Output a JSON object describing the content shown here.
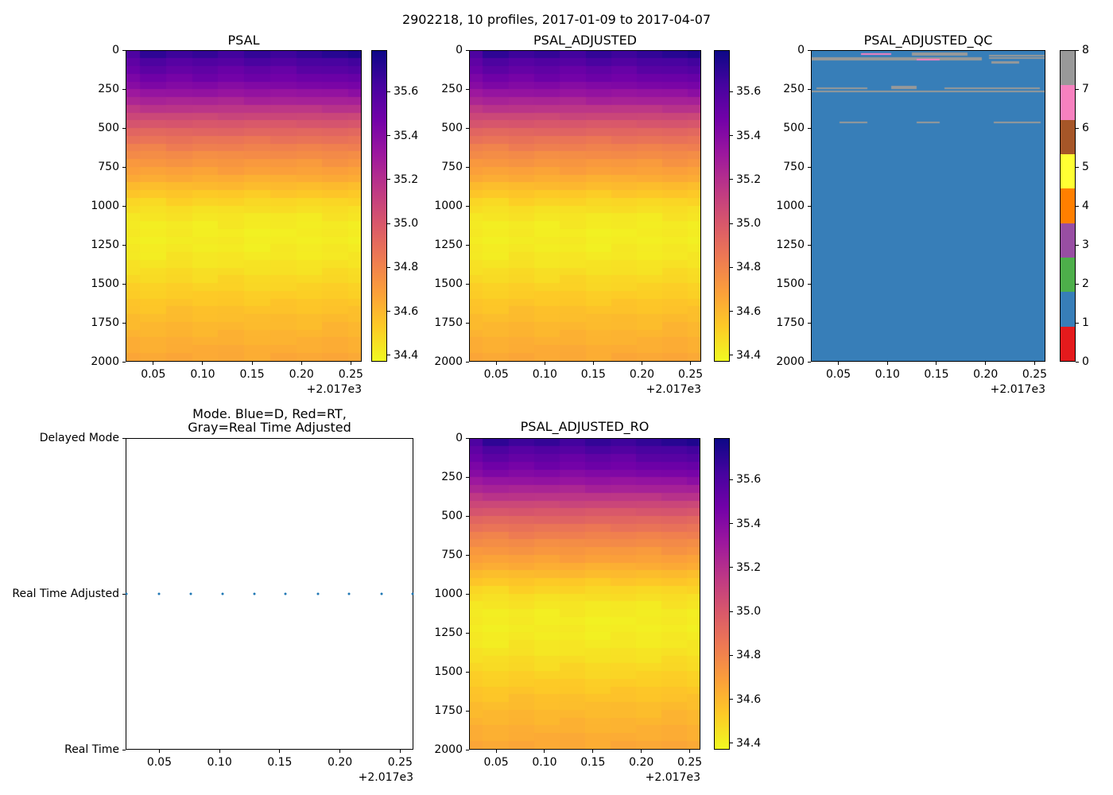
{
  "figure": {
    "title": "2902218, 10 profiles, 2017-01-09 to 2017-04-07"
  },
  "panels": {
    "psal": {
      "title": "PSAL"
    },
    "psal_adjusted": {
      "title": "PSAL_ADJUSTED"
    },
    "psal_adjusted_qc": {
      "title": "PSAL_ADJUSTED_QC"
    },
    "mode": {
      "title": "Mode. Blue=D, Red=RT,\nGray=Real Time Adjusted"
    },
    "psal_adjusted_ro": {
      "title": "PSAL_ADJUSTED_RO"
    }
  },
  "axis": {
    "xlim": [
      2017.022,
      2017.261
    ],
    "xticks": [
      {
        "value": 2017.05,
        "label": "0.05"
      },
      {
        "value": 2017.1,
        "label": "0.10"
      },
      {
        "value": 2017.15,
        "label": "0.15"
      },
      {
        "value": 2017.2,
        "label": "0.20"
      },
      {
        "value": 2017.25,
        "label": "0.25"
      }
    ],
    "x_offset_label": "+2.017e3",
    "depth_lim": [
      0,
      2000
    ],
    "depth_ticks": [
      {
        "value": 0,
        "label": "0"
      },
      {
        "value": 250,
        "label": "250"
      },
      {
        "value": 500,
        "label": "500"
      },
      {
        "value": 750,
        "label": "750"
      },
      {
        "value": 1000,
        "label": "1000"
      },
      {
        "value": 1250,
        "label": "1250"
      },
      {
        "value": 1500,
        "label": "1500"
      },
      {
        "value": 1750,
        "label": "1750"
      },
      {
        "value": 2000,
        "label": "2000"
      }
    ]
  },
  "salinity_colormap": {
    "name": "plasma_r",
    "vmin": 34.37,
    "vmax": 35.79,
    "cbar_ticks": [
      {
        "value": 35.6,
        "label": "35.6"
      },
      {
        "value": 35.4,
        "label": "35.4"
      },
      {
        "value": 35.2,
        "label": "35.2"
      },
      {
        "value": 35.0,
        "label": "35.0"
      },
      {
        "value": 34.8,
        "label": "34.8"
      },
      {
        "value": 34.6,
        "label": "34.6"
      },
      {
        "value": 34.4,
        "label": "34.4"
      }
    ]
  },
  "qc_colormap": {
    "colors_by_flag": {
      "0": "#e41a1c",
      "1": "#377eb8",
      "2": "#4daf4a",
      "3": "#984ea3",
      "4": "#ff7f00",
      "5": "#ffff33",
      "6": "#a65628",
      "7": "#f781bf",
      "8": "#999999"
    },
    "cbar_ticks": [
      {
        "value": 8,
        "label": "8"
      },
      {
        "value": 7,
        "label": "7"
      },
      {
        "value": 6,
        "label": "6"
      },
      {
        "value": 5,
        "label": "5"
      },
      {
        "value": 4,
        "label": "4"
      },
      {
        "value": 3,
        "label": "3"
      },
      {
        "value": 2,
        "label": "2"
      },
      {
        "value": 1,
        "label": "1"
      },
      {
        "value": 0,
        "label": "0"
      }
    ]
  },
  "chart_data": [
    {
      "type": "heatmap",
      "panels": [
        "psal",
        "psal_adjusted",
        "psal_adjusted_ro"
      ],
      "titles": [
        "PSAL",
        "PSAL_ADJUSTED",
        "PSAL_ADJUSTED_RO"
      ],
      "n_profiles": 10,
      "profile_times_decimal_year": [
        2017.022,
        2017.049,
        2017.076,
        2017.102,
        2017.129,
        2017.155,
        2017.182,
        2017.208,
        2017.235,
        2017.261
      ],
      "depth_profile": {
        "depths_m": [
          0,
          50,
          100,
          150,
          200,
          250,
          300,
          350,
          400,
          450,
          500,
          550,
          600,
          650,
          700,
          750,
          800,
          850,
          900,
          950,
          1000,
          1100,
          1200,
          1300,
          1400,
          1500,
          1600,
          1700,
          1800,
          1900,
          2000
        ],
        "salinity_psu": [
          35.7,
          35.62,
          35.55,
          35.5,
          35.45,
          35.38,
          35.3,
          35.21,
          35.12,
          35.04,
          34.97,
          34.9,
          34.84,
          34.79,
          34.74,
          34.7,
          34.66,
          34.61,
          34.56,
          34.51,
          34.47,
          34.42,
          34.41,
          34.42,
          34.45,
          34.49,
          34.53,
          34.57,
          34.6,
          34.63,
          34.66
        ]
      },
      "surface_delta_per_profile": [
        -0.05,
        0.03,
        -0.01,
        0.02,
        -0.02,
        0.03,
        0.0,
        0.04,
        0.05,
        0.08
      ],
      "deep_delta_per_profile": [
        0.004,
        -0.006,
        0.01,
        -0.004,
        0.006,
        -0.008,
        0.002,
        -0.006,
        0.008,
        -0.002
      ],
      "vmin": 34.37,
      "vmax": 35.79,
      "xlabel": "",
      "ylabel": "",
      "grid": false
    },
    {
      "type": "heatmap",
      "panels": [
        "psal_adjusted_qc"
      ],
      "titles": [
        "PSAL_ADJUSTED_QC"
      ],
      "base_flag": 1,
      "flag_range": [
        0,
        8
      ],
      "anomaly_segments": [
        {
          "x0": 0.0,
          "x1": 0.73,
          "d0": 40,
          "d1": 58,
          "flag": 8
        },
        {
          "x0": 0.21,
          "x1": 0.34,
          "d0": 16,
          "d1": 27,
          "flag": 7
        },
        {
          "x0": 0.43,
          "x1": 0.67,
          "d0": 10,
          "d1": 20,
          "flag": 8
        },
        {
          "x0": 0.43,
          "x1": 0.67,
          "d0": 22,
          "d1": 32,
          "flag": 8
        },
        {
          "x0": 0.45,
          "x1": 0.55,
          "d0": 52,
          "d1": 62,
          "flag": 7
        },
        {
          "x0": 0.76,
          "x1": 1.0,
          "d0": 26,
          "d1": 38,
          "flag": 8
        },
        {
          "x0": 0.76,
          "x1": 1.0,
          "d0": 40,
          "d1": 50,
          "flag": 8
        },
        {
          "x0": 0.77,
          "x1": 0.89,
          "d0": 66,
          "d1": 82,
          "flag": 8
        },
        {
          "x0": 0.02,
          "x1": 0.24,
          "d0": 236,
          "d1": 248,
          "flag": 8
        },
        {
          "x0": 0.34,
          "x1": 0.45,
          "d0": 224,
          "d1": 234,
          "flag": 8
        },
        {
          "x0": 0.34,
          "x1": 0.45,
          "d0": 238,
          "d1": 248,
          "flag": 8
        },
        {
          "x0": 0.57,
          "x1": 0.98,
          "d0": 236,
          "d1": 248,
          "flag": 8
        },
        {
          "x0": 0.0,
          "x1": 1.0,
          "d0": 258,
          "d1": 270,
          "flag": 8
        },
        {
          "x0": 0.12,
          "x1": 0.24,
          "d0": 456,
          "d1": 468,
          "flag": 8
        },
        {
          "x0": 0.45,
          "x1": 0.55,
          "d0": 456,
          "d1": 468,
          "flag": 8
        },
        {
          "x0": 0.78,
          "x1": 0.98,
          "d0": 456,
          "d1": 468,
          "flag": 8
        }
      ]
    },
    {
      "type": "scatter",
      "panels": [
        "mode"
      ],
      "title": "Mode. Blue=D, Red=RT,\nGray=Real Time Adjusted",
      "y_categories": [
        "Delayed Mode",
        "Real Time Adjusted",
        "Real Time"
      ],
      "x": [
        2017.022,
        2017.049,
        2017.076,
        2017.102,
        2017.129,
        2017.155,
        2017.182,
        2017.208,
        2017.235,
        2017.261
      ],
      "y_category_of_points": "Real Time Adjusted",
      "marker_color": "#1f77b4"
    }
  ]
}
